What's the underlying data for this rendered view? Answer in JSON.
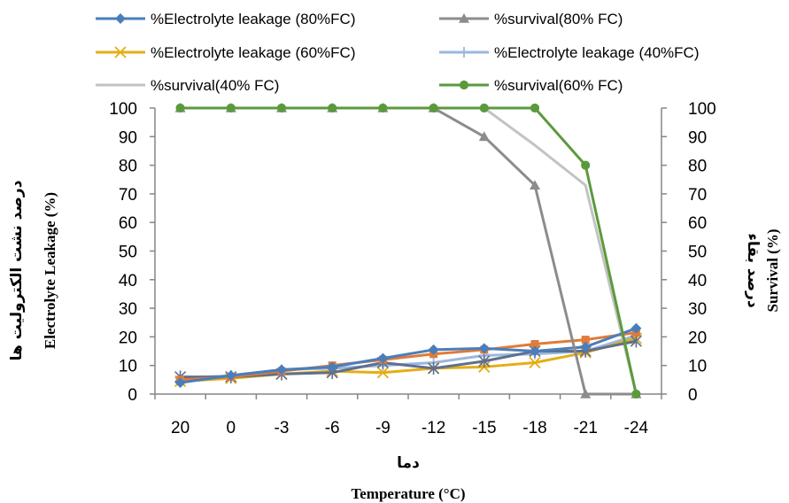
{
  "chart_data": {
    "type": "line",
    "categories": [
      "20",
      "0",
      "-3",
      "-6",
      "-9",
      "-12",
      "-15",
      "-18",
      "-21",
      "-24"
    ],
    "x_title_fa": "دما",
    "x_title_en": "Temperature (°C)",
    "y_left_title_fa": "درصد نشت الکترولیت ها",
    "y_left_title_en": "Electrolyte Leakage (%)",
    "y_right_title_fa": "درصد بقاء",
    "y_right_title_en": "Survival (%)",
    "ylim": [
      0,
      100
    ],
    "ytick_step": 10,
    "yticks": [
      "0",
      "10",
      "20",
      "30",
      "40",
      "50",
      "60",
      "70",
      "80",
      "90",
      "100"
    ],
    "grid": false,
    "legend_position": "top",
    "series": [
      {
        "name": "%Electrolyte leakage (80%FC)",
        "color": "#4a7ebb",
        "marker": "diamond",
        "values": [
          4,
          6.5,
          8.5,
          9.5,
          12.5,
          15.5,
          16,
          15,
          16.5,
          23
        ]
      },
      {
        "name": "%survival(80% FC)",
        "color": "#8c8c8c",
        "marker": "triangle",
        "values": [
          100,
          100,
          100,
          100,
          100,
          100,
          90,
          73,
          0,
          0
        ]
      },
      {
        "name": "%Electrolyte leakage (60%FC)",
        "color": "#e6ad14",
        "marker": "x",
        "values": [
          4.5,
          5.5,
          7,
          8,
          7.5,
          9,
          9.5,
          11,
          14.5,
          19.5
        ]
      },
      {
        "name": "%Electrolyte leakage (40%FC)",
        "color": "#9ab7de",
        "marker": "plus",
        "values": [
          5.5,
          6.5,
          8.5,
          9,
          10,
          11,
          13.5,
          14,
          15,
          20.5
        ]
      },
      {
        "name": "%survival(40% FC)",
        "color": "#c3c3c3",
        "marker": "none",
        "values": [
          100,
          100,
          100,
          100,
          100,
          100,
          100,
          87,
          73,
          0
        ]
      },
      {
        "name": "%survival(60% FC)",
        "color": "#5b9a3c",
        "marker": "circle",
        "values": [
          100,
          100,
          100,
          100,
          100,
          100,
          100,
          100,
          80,
          0
        ]
      },
      {
        "name": "",
        "color": "#e07b39",
        "marker": "square",
        "values": [
          5,
          6,
          8,
          10,
          12,
          14,
          15.5,
          17.5,
          19,
          21.5
        ]
      },
      {
        "name": "",
        "color": "#5f6f8c",
        "marker": "asterisk",
        "values": [
          6,
          6,
          7,
          7.5,
          11,
          9,
          11.5,
          15,
          15,
          18.5
        ]
      }
    ]
  }
}
